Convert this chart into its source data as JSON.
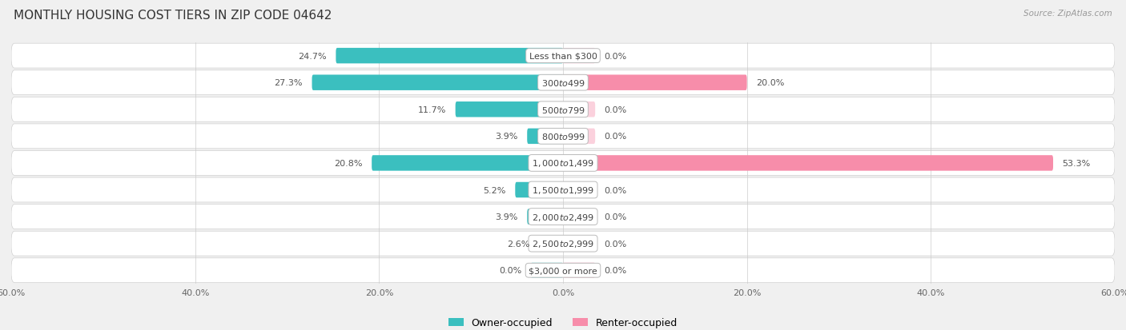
{
  "title": "MONTHLY HOUSING COST TIERS IN ZIP CODE 04642",
  "source": "Source: ZipAtlas.com",
  "categories": [
    "Less than $300",
    "$300 to $499",
    "$500 to $799",
    "$800 to $999",
    "$1,000 to $1,499",
    "$1,500 to $1,999",
    "$2,000 to $2,499",
    "$2,500 to $2,999",
    "$3,000 or more"
  ],
  "owner_values": [
    24.7,
    27.3,
    11.7,
    3.9,
    20.8,
    5.2,
    3.9,
    2.6,
    0.0
  ],
  "renter_values": [
    0.0,
    20.0,
    0.0,
    0.0,
    53.3,
    0.0,
    0.0,
    0.0,
    0.0
  ],
  "owner_color": "#3bbfbf",
  "renter_color": "#f78daa",
  "axis_limit": 60.0,
  "title_fontsize": 11,
  "label_fontsize": 8.0,
  "bar_height": 0.58,
  "stub_size": 3.5,
  "figsize": [
    14.06,
    4.14
  ],
  "dpi": 100,
  "row_colors": [
    "#f0f0f0",
    "#e8e8e8"
  ],
  "bg_color": "#f0f0f0"
}
